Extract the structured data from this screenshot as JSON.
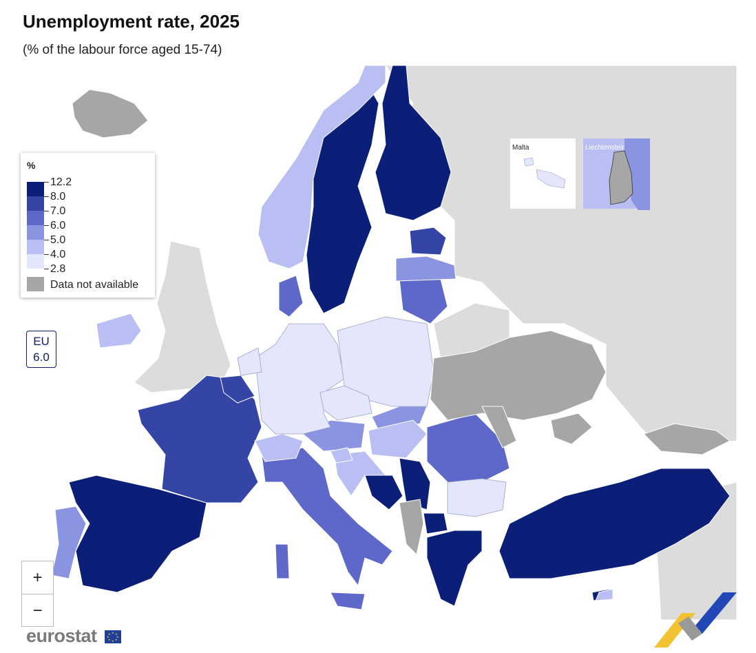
{
  "title": "Unemployment rate, 2025",
  "subtitle": "(% of the labour force aged 15-74)",
  "legend": {
    "title": "%",
    "breaks": [
      "12.2",
      "8.0",
      "7.0",
      "6.0",
      "5.0",
      "4.0",
      "2.8"
    ],
    "colors": [
      "#0b1f78",
      "#3545a6",
      "#5d68c8",
      "#8a94e0",
      "#b9bff2",
      "#e4e6fb"
    ],
    "not_available_label": "Data not available",
    "not_available_color": "#a6a6a6"
  },
  "eu": {
    "label": "EU",
    "value": "6.0"
  },
  "insets": {
    "malta": "Malta",
    "liechtenstein": "Liechtenstein"
  },
  "zoom": {
    "in": "+",
    "out": "−"
  },
  "brand": "eurostat",
  "colors": {
    "background_land": "#dcdcdc",
    "sea": "#ffffff",
    "border": "#ffffff"
  }
}
